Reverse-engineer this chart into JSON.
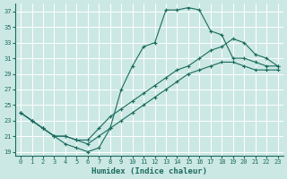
{
  "xlabel": "Humidex (Indice chaleur)",
  "bg_color": "#cce8e4",
  "grid_color": "#ffffff",
  "line_color": "#1a6b5e",
  "marker": "+",
  "xlim": [
    -0.5,
    23.5
  ],
  "ylim": [
    18.5,
    38
  ],
  "xticks": [
    0,
    1,
    2,
    3,
    4,
    5,
    6,
    7,
    8,
    9,
    10,
    11,
    12,
    13,
    14,
    15,
    16,
    17,
    18,
    19,
    20,
    21,
    22,
    23
  ],
  "yticks": [
    19,
    21,
    23,
    25,
    27,
    29,
    31,
    33,
    35,
    37
  ],
  "curve1_x": [
    0,
    1,
    2,
    3,
    4,
    5,
    6,
    7,
    8,
    9,
    10,
    11,
    12,
    13,
    14,
    15,
    16,
    17,
    18,
    19,
    20,
    21,
    22,
    23
  ],
  "curve1_y": [
    24,
    23,
    22,
    21,
    20,
    19.5,
    19,
    19.5,
    22,
    27,
    30,
    32.5,
    33,
    37.2,
    37.2,
    37.5,
    37.2,
    34.5,
    34,
    31,
    31,
    30.5,
    30,
    30
  ],
  "curve2_x": [
    0,
    1,
    2,
    3,
    4,
    5,
    6,
    7,
    8,
    9,
    10,
    11,
    12,
    13,
    14,
    15,
    16,
    17,
    18,
    19,
    20,
    21,
    22,
    23
  ],
  "curve2_y": [
    24,
    23,
    22,
    21,
    21,
    20.5,
    20.5,
    22,
    23.5,
    24.5,
    25.5,
    26.5,
    27.5,
    28.5,
    29.5,
    30,
    31,
    32,
    32.5,
    33.5,
    33,
    31.5,
    31,
    30
  ],
  "curve3_x": [
    0,
    1,
    2,
    3,
    4,
    5,
    6,
    7,
    8,
    9,
    10,
    11,
    12,
    13,
    14,
    15,
    16,
    17,
    18,
    19,
    20,
    21,
    22,
    23
  ],
  "curve3_y": [
    24,
    23,
    22,
    21,
    21,
    20.5,
    20,
    21,
    22,
    23,
    24,
    25,
    26,
    27,
    28,
    29,
    29.5,
    30,
    30.5,
    30.5,
    30,
    29.5,
    29.5,
    29.5
  ],
  "tick_fontsize": 5,
  "xlabel_fontsize": 6.5,
  "lw": 0.8,
  "ms": 2.5
}
